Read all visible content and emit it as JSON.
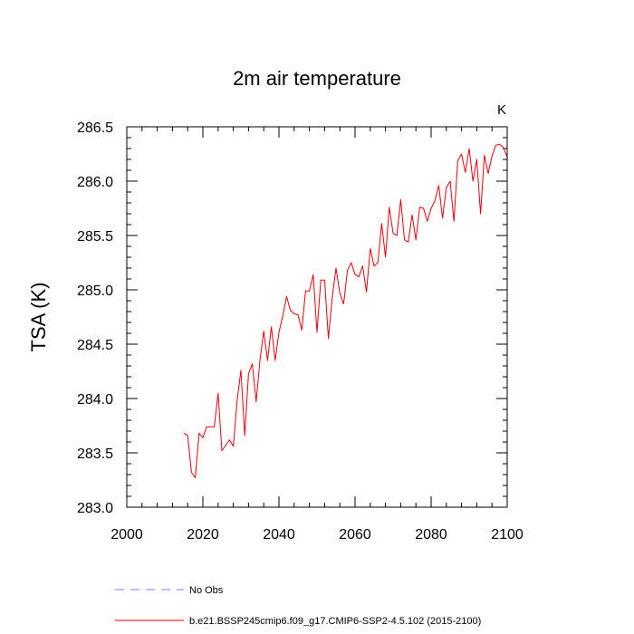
{
  "chart_data": {
    "type": "line",
    "title": "2m air temperature",
    "ylabel": "TSA  (K)",
    "xlabel": "",
    "units": "K",
    "xlim": [
      2000,
      2100
    ],
    "ylim": [
      283.0,
      286.5
    ],
    "xticks": [
      2000,
      2020,
      2040,
      2060,
      2080,
      2100
    ],
    "yticks": [
      283.0,
      283.5,
      284.0,
      284.5,
      285.0,
      285.5,
      286.0,
      286.5
    ],
    "ytick_labels": [
      "283.0",
      "283.5",
      "284.0",
      "284.5",
      "285.0",
      "285.5",
      "286.0",
      "286.5"
    ],
    "series": [
      {
        "name": "b.e21.BSSP245cmip6.f09_g17.CMIP6-SSP2-4.5.102 (2015-2100)",
        "color": "#e8000b",
        "style": "solid",
        "x": [
          2015,
          2016,
          2017,
          2018,
          2019,
          2020,
          2021,
          2022,
          2023,
          2024,
          2025,
          2026,
          2027,
          2028,
          2029,
          2030,
          2031,
          2032,
          2033,
          2034,
          2035,
          2036,
          2037,
          2038,
          2039,
          2040,
          2041,
          2042,
          2043,
          2044,
          2045,
          2046,
          2047,
          2048,
          2049,
          2050,
          2051,
          2052,
          2053,
          2054,
          2055,
          2056,
          2057,
          2058,
          2059,
          2060,
          2061,
          2062,
          2063,
          2064,
          2065,
          2066,
          2067,
          2068,
          2069,
          2070,
          2071,
          2072,
          2073,
          2074,
          2075,
          2076,
          2077,
          2078,
          2079,
          2080,
          2081,
          2082,
          2083,
          2084,
          2085,
          2086,
          2087,
          2088,
          2089,
          2090,
          2091,
          2092,
          2093,
          2094,
          2095,
          2096,
          2097,
          2098,
          2099,
          2100
        ],
        "values": [
          283.68,
          283.66,
          283.32,
          283.27,
          283.68,
          283.64,
          283.74,
          283.74,
          283.74,
          284.05,
          283.52,
          283.57,
          283.62,
          283.56,
          283.98,
          284.26,
          283.66,
          284.23,
          284.32,
          283.97,
          284.35,
          284.62,
          284.35,
          284.66,
          284.35,
          284.61,
          284.76,
          284.94,
          284.81,
          284.78,
          284.77,
          284.63,
          284.99,
          284.99,
          285.14,
          284.61,
          285.09,
          285.09,
          284.55,
          284.93,
          285.2,
          284.97,
          284.87,
          285.18,
          285.25,
          285.14,
          285.12,
          285.22,
          284.98,
          285.38,
          285.22,
          285.25,
          285.61,
          285.3,
          285.76,
          285.52,
          285.5,
          285.83,
          285.46,
          285.44,
          285.69,
          285.46,
          285.76,
          285.75,
          285.63,
          285.75,
          285.82,
          285.96,
          285.66,
          285.94,
          286.0,
          285.63,
          286.19,
          286.25,
          286.08,
          286.3,
          286.0,
          286.2,
          285.7,
          286.24,
          286.07,
          286.23,
          286.33,
          286.34,
          286.31,
          286.22
        ]
      },
      {
        "name": "No Obs",
        "color": "#7d7dff",
        "style": "dashed",
        "x": [],
        "values": []
      }
    ],
    "legend_position": "bottom-left"
  }
}
